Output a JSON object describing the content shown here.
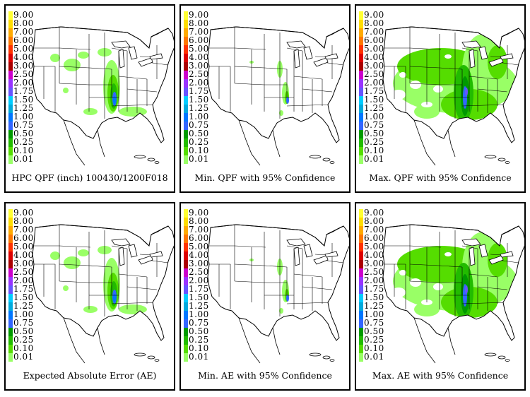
{
  "legend": {
    "levels": [
      {
        "label": "9.00",
        "color": "#ffff33"
      },
      {
        "label": "8.00",
        "color": "#ffdd00"
      },
      {
        "label": "7.00",
        "color": "#ffaa00"
      },
      {
        "label": "6.00",
        "color": "#ff7700"
      },
      {
        "label": "5.00",
        "color": "#ff3300"
      },
      {
        "label": "4.00",
        "color": "#dd0000"
      },
      {
        "label": "3.00",
        "color": "#aa0000"
      },
      {
        "label": "2.50",
        "color": "#cc00cc"
      },
      {
        "label": "2.00",
        "color": "#9933ff"
      },
      {
        "label": "1.75",
        "color": "#6655ff"
      },
      {
        "label": "1.50",
        "color": "#00ccff"
      },
      {
        "label": "1.25",
        "color": "#00aadd"
      },
      {
        "label": "1.00",
        "color": "#0077ff"
      },
      {
        "label": "0.75",
        "color": "#3366ff"
      },
      {
        "label": "0.50",
        "color": "#009900"
      },
      {
        "label": "0.25",
        "color": "#22bb00"
      },
      {
        "label": "0.10",
        "color": "#55dd00"
      },
      {
        "label": "0.01",
        "color": "#99ff66"
      }
    ]
  },
  "panels": [
    {
      "caption": "HPC QPF (inch) 100430/1200F018",
      "intensity": "medium"
    },
    {
      "caption": "Min. QPF with 95% Confidence",
      "intensity": "low"
    },
    {
      "caption": "Max. QPF with 95% Confidence",
      "intensity": "high"
    },
    {
      "caption": "Expected Absolute Error (AE)",
      "intensity": "medium"
    },
    {
      "caption": "Min. AE with 95% Confidence",
      "intensity": "low"
    },
    {
      "caption": "Max. AE with 95% Confidence",
      "intensity": "high"
    }
  ]
}
